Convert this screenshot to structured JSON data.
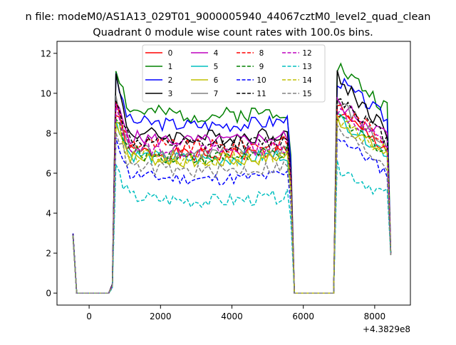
{
  "suptitle": "n file: modeM0/AS1A13_029T01_9000005940_44067cztM0_level2_quad_clean",
  "chart_data": {
    "type": "line",
    "title": "Quadrant 0 module wise count rates with 100.0s bins.",
    "xlabel": "",
    "ylabel": "",
    "x_offset_label": "+4.3829e8",
    "xlim": [
      -900,
      9000
    ],
    "ylim": [
      -0.6,
      12.6
    ],
    "x_ticks": [
      0,
      2000,
      4000,
      6000,
      8000
    ],
    "x_tick_labels": [
      "0",
      "2000",
      "4000",
      "6000",
      "8000"
    ],
    "y_ticks": [
      0,
      2,
      4,
      6,
      8,
      10,
      12
    ],
    "y_tick_labels": [
      "0",
      "2",
      "4",
      "6",
      "8",
      "10",
      "12"
    ],
    "grid": false,
    "legend_position": "upper center",
    "series": [
      {
        "name": "0",
        "color": "#ff0000",
        "dash": "solid",
        "level": 7.2,
        "peak": 9.0,
        "noise": 0.35
      },
      {
        "name": "1",
        "color": "#008000",
        "dash": "solid",
        "level": 9.2,
        "peak": 11.4,
        "noise": 0.4
      },
      {
        "name": "2",
        "color": "#0000ff",
        "dash": "solid",
        "level": 8.7,
        "peak": 10.7,
        "noise": 0.35
      },
      {
        "name": "3",
        "color": "#000000",
        "dash": "solid",
        "level": 8.1,
        "peak": 10.8,
        "noise": 0.4
      },
      {
        "name": "4",
        "color": "#bf00bf",
        "dash": "solid",
        "level": 7.9,
        "peak": 9.5,
        "noise": 0.35
      },
      {
        "name": "5",
        "color": "#00bfbf",
        "dash": "solid",
        "level": 7.0,
        "peak": 8.8,
        "noise": 0.35
      },
      {
        "name": "6",
        "color": "#bfbf00",
        "dash": "solid",
        "level": 6.9,
        "peak": 8.7,
        "noise": 0.35
      },
      {
        "name": "7",
        "color": "#808080",
        "dash": "solid",
        "level": 7.3,
        "peak": 9.6,
        "noise": 0.35
      },
      {
        "name": "8",
        "color": "#ff0000",
        "dash": "dashed",
        "level": 7.6,
        "peak": 9.4,
        "noise": 0.4
      },
      {
        "name": "9",
        "color": "#008000",
        "dash": "dashed",
        "level": 7.1,
        "peak": 8.7,
        "noise": 0.35
      },
      {
        "name": "10",
        "color": "#0000ff",
        "dash": "dashed",
        "level": 6.0,
        "peak": 7.9,
        "noise": 0.3
      },
      {
        "name": "11",
        "color": "#000000",
        "dash": "dashed",
        "level": 7.7,
        "peak": 9.9,
        "noise": 0.35
      },
      {
        "name": "12",
        "color": "#bf00bf",
        "dash": "dashed",
        "level": 7.4,
        "peak": 9.2,
        "noise": 0.35
      },
      {
        "name": "13",
        "color": "#00bfbf",
        "dash": "dashed",
        "level": 4.9,
        "peak": 6.3,
        "noise": 0.35
      },
      {
        "name": "14",
        "color": "#bfbf00",
        "dash": "dashed",
        "level": 7.0,
        "peak": 8.6,
        "noise": 0.35
      },
      {
        "name": "15",
        "color": "#808080",
        "dash": "dashed",
        "level": 6.4,
        "peak": 8.2,
        "noise": 0.35
      }
    ],
    "time_profile": {
      "start": -450,
      "bin": 100,
      "end": 8450,
      "initial_value": 2.9,
      "gap1": [
        -350,
        550
      ],
      "active1": [
        750,
        5550
      ],
      "gap2": [
        5750,
        6850
      ],
      "active2": [
        6950,
        8350
      ],
      "end_value": 2.0
    }
  }
}
